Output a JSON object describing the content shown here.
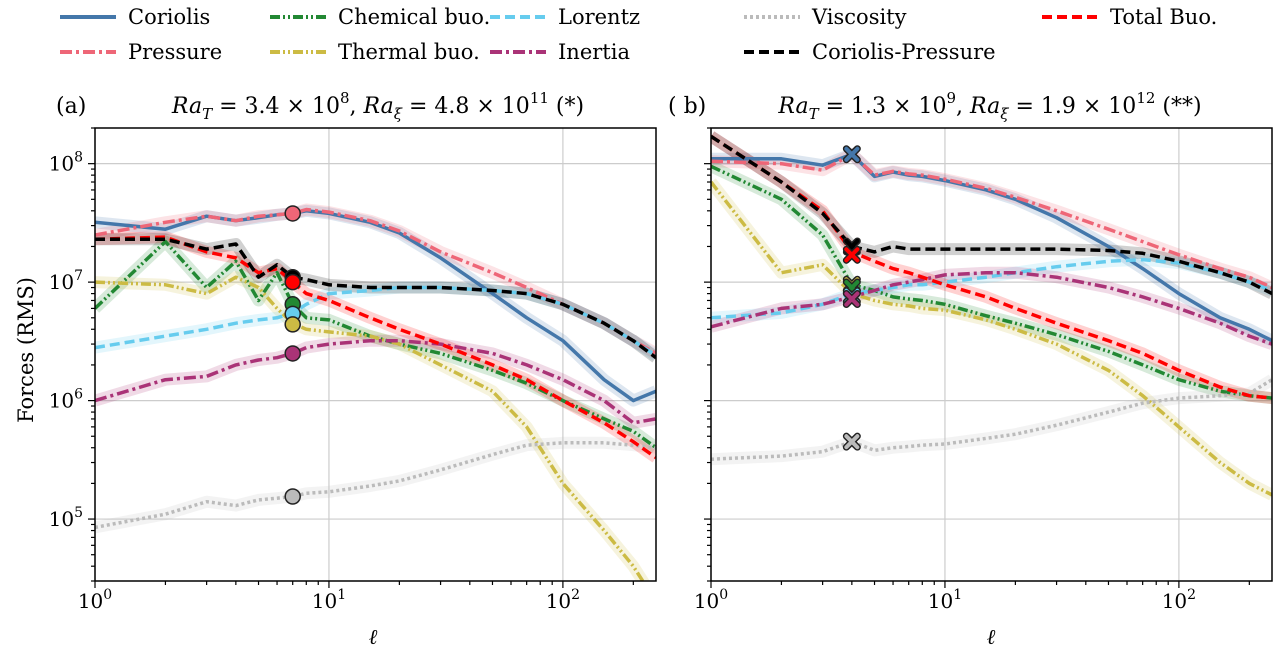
{
  "legend": [
    {
      "label": "Coriolis",
      "color": "#4477aa",
      "dash": "solid"
    },
    {
      "label": "Chemical buo.",
      "color": "#228833",
      "dash": "dashdotdot"
    },
    {
      "label": "Lorentz",
      "color": "#66ccee",
      "dash": "dash"
    },
    {
      "label": "Viscosity",
      "color": "#bbbbbb",
      "dash": "dot"
    },
    {
      "label": "Total Buo.",
      "color": "#ff0000",
      "dash": "dash"
    },
    {
      "label": "Pressure",
      "color": "#ee6677",
      "dash": "dashdot"
    },
    {
      "label": "Thermal buo.",
      "color": "#ccbb44",
      "dash": "dashdotdot"
    },
    {
      "label": "Inertia",
      "color": "#aa3377",
      "dash": "dashdot"
    },
    {
      "label": "Coriolis-Pressure",
      "color": "#000000",
      "dash": "dash"
    }
  ],
  "chart_data": [
    {
      "type": "line",
      "panel_label": "(a)",
      "title": "Ra_T = 3.4 × 10^8, Ra_ξ = 4.8 × 10^11 (*)",
      "title_parts": {
        "ra_t_mant": "3.4",
        "ra_t_exp": "8",
        "ra_xi_mant": "4.8",
        "ra_xi_exp": "11",
        "tag": "(*)"
      },
      "xlabel": "ℓ",
      "ylabel": "Forces (RMS)",
      "xscale": "log",
      "yscale": "log",
      "xlim": [
        1,
        250
      ],
      "ylim": [
        30000,
        200000000
      ],
      "xticks": [
        1,
        10,
        100
      ],
      "yticks": [
        100000,
        1000000,
        10000000,
        100000000
      ],
      "grid": true,
      "marker_shape": "circle",
      "marker_x": 7,
      "series": [
        {
          "name": "Coriolis",
          "x": [
            1,
            2,
            3,
            4,
            5,
            6,
            7,
            8,
            10,
            15,
            20,
            30,
            50,
            70,
            100,
            150,
            200,
            250
          ],
          "y": [
            32000000,
            28000000,
            36000000,
            33000000,
            35000000,
            37000000,
            38000000,
            40000000,
            38000000,
            32000000,
            26000000,
            16000000,
            8000000,
            5000000,
            3200000,
            1500000,
            1000000,
            1200000
          ]
        },
        {
          "name": "Pressure",
          "x": [
            1,
            2,
            3,
            4,
            5,
            6,
            7,
            8,
            10,
            15,
            20,
            30,
            50,
            70,
            100,
            150,
            200,
            250
          ],
          "y": [
            25000000,
            32000000,
            36000000,
            33000000,
            36000000,
            37000000,
            38000000,
            41000000,
            39000000,
            33000000,
            27000000,
            18000000,
            12000000,
            9000000,
            6500000,
            4500000,
            3200000,
            2500000
          ]
        },
        {
          "name": "Chemical buo.",
          "x": [
            1,
            2,
            3,
            4,
            5,
            6,
            7,
            8,
            10,
            15,
            20,
            30,
            50,
            70,
            100,
            150,
            200,
            250
          ],
          "y": [
            6000000,
            22000000,
            9000000,
            15000000,
            7000000,
            12000000,
            6500000,
            5000000,
            4800000,
            3500000,
            3000000,
            2500000,
            1800000,
            1400000,
            1000000,
            700000,
            550000,
            400000
          ]
        },
        {
          "name": "Thermal buo.",
          "x": [
            1,
            2,
            3,
            4,
            5,
            6,
            7,
            8,
            10,
            15,
            20,
            30,
            50,
            70,
            100,
            150,
            200,
            250
          ],
          "y": [
            10000000,
            9500000,
            8000000,
            11000000,
            9000000,
            6000000,
            4500000,
            4000000,
            3800000,
            3500000,
            3000000,
            2000000,
            1200000,
            600000,
            200000,
            80000,
            40000,
            20000
          ]
        },
        {
          "name": "Lorentz",
          "x": [
            1,
            2,
            3,
            4,
            5,
            6,
            7,
            8,
            10,
            15,
            20,
            30,
            50,
            70,
            100,
            150,
            200,
            250
          ],
          "y": [
            2800000,
            3500000,
            4000000,
            4500000,
            4800000,
            5000000,
            5500000,
            6500000,
            8000000,
            8500000,
            9000000,
            9000000,
            8500000,
            8000000,
            6500000,
            4500000,
            3200000,
            2400000
          ]
        },
        {
          "name": "Inertia",
          "x": [
            1,
            2,
            3,
            4,
            5,
            6,
            7,
            8,
            10,
            15,
            20,
            30,
            50,
            70,
            100,
            150,
            200,
            250
          ],
          "y": [
            1000000,
            1500000,
            1600000,
            2000000,
            2200000,
            2300000,
            2500000,
            2800000,
            3000000,
            3200000,
            3200000,
            3000000,
            2500000,
            2000000,
            1500000,
            1000000,
            650000,
            700000
          ]
        },
        {
          "name": "Viscosity",
          "x": [
            1,
            2,
            3,
            4,
            5,
            6,
            7,
            8,
            10,
            15,
            20,
            30,
            50,
            70,
            100,
            150,
            200,
            250
          ],
          "y": [
            85000,
            110000,
            140000,
            130000,
            145000,
            150000,
            155000,
            165000,
            170000,
            190000,
            210000,
            260000,
            350000,
            420000,
            440000,
            440000,
            420000,
            400000
          ]
        },
        {
          "name": "Total Buo.",
          "x": [
            1,
            2,
            3,
            4,
            5,
            6,
            7,
            8,
            10,
            15,
            20,
            30,
            50,
            70,
            100,
            150,
            200,
            250
          ],
          "y": [
            23000000,
            24000000,
            18000000,
            16000000,
            12000000,
            13000000,
            10000000,
            8000000,
            7000000,
            5000000,
            4000000,
            3000000,
            2000000,
            1500000,
            1000000,
            650000,
            450000,
            330000
          ]
        },
        {
          "name": "Coriolis-Pressure",
          "x": [
            1,
            2,
            3,
            4,
            5,
            6,
            7,
            8,
            10,
            15,
            20,
            30,
            50,
            70,
            100,
            150,
            200,
            250
          ],
          "y": [
            23000000,
            23000000,
            19000000,
            21000000,
            11000000,
            14000000,
            11000000,
            10500000,
            9500000,
            9000000,
            9000000,
            9000000,
            8500000,
            8000000,
            6500000,
            4500000,
            3200000,
            2300000
          ]
        }
      ],
      "markers": [
        {
          "name": "Pressure",
          "y": 38000000
        },
        {
          "name": "Coriolis-Pressure",
          "y": 11000000
        },
        {
          "name": "Total Buo.",
          "y": 10000000
        },
        {
          "name": "Chemical buo.",
          "y": 6500000
        },
        {
          "name": "Lorentz",
          "y": 5400000
        },
        {
          "name": "Thermal buo.",
          "y": 4400000
        },
        {
          "name": "Inertia",
          "y": 2500000
        },
        {
          "name": "Viscosity",
          "y": 155000
        }
      ]
    },
    {
      "type": "line",
      "panel_label": "( b)",
      "title": "Ra_T = 1.3 × 10^9, Ra_ξ = 1.9 × 10^12 (**)",
      "title_parts": {
        "ra_t_mant": "1.3",
        "ra_t_exp": "9",
        "ra_xi_mant": "1.9",
        "ra_xi_exp": "12",
        "tag": "(**)"
      },
      "xlabel": "ℓ",
      "ylabel": "",
      "xscale": "log",
      "yscale": "log",
      "xlim": [
        1,
        250
      ],
      "ylim": [
        30000,
        200000000
      ],
      "xticks": [
        1,
        10,
        100
      ],
      "yticks": [
        100000,
        1000000,
        10000000,
        100000000
      ],
      "grid": true,
      "marker_shape": "x",
      "marker_x": 4,
      "series": [
        {
          "name": "Coriolis",
          "x": [
            1,
            2,
            3,
            4,
            5,
            6,
            7,
            8,
            10,
            15,
            20,
            30,
            50,
            70,
            100,
            150,
            200,
            250
          ],
          "y": [
            110000000,
            110000000,
            97000000,
            120000000,
            78000000,
            85000000,
            80000000,
            78000000,
            72000000,
            60000000,
            50000000,
            35000000,
            20000000,
            13000000,
            8000000,
            5000000,
            4000000,
            3200000
          ]
        },
        {
          "name": "Pressure",
          "x": [
            1,
            2,
            3,
            4,
            5,
            6,
            7,
            8,
            10,
            15,
            20,
            30,
            50,
            70,
            100,
            150,
            200,
            250
          ],
          "y": [
            105000000,
            100000000,
            88000000,
            120000000,
            80000000,
            86000000,
            82000000,
            80000000,
            74000000,
            62000000,
            52000000,
            40000000,
            28000000,
            22000000,
            17000000,
            13000000,
            11000000,
            9000000
          ]
        },
        {
          "name": "Chemical buo.",
          "x": [
            1,
            2,
            3,
            4,
            5,
            6,
            7,
            8,
            10,
            15,
            20,
            30,
            50,
            70,
            100,
            150,
            200,
            250
          ],
          "y": [
            95000000,
            50000000,
            25000000,
            9500000,
            8500000,
            7500000,
            7200000,
            7000000,
            6500000,
            5200000,
            4500000,
            3600000,
            2600000,
            2000000,
            1500000,
            1200000,
            1100000,
            1050000
          ]
        },
        {
          "name": "Thermal buo.",
          "x": [
            1,
            2,
            3,
            4,
            5,
            6,
            7,
            8,
            10,
            15,
            20,
            30,
            50,
            70,
            100,
            150,
            200,
            250
          ],
          "y": [
            70000000,
            12000000,
            14000000,
            8000000,
            7000000,
            6500000,
            6300000,
            6000000,
            5800000,
            4800000,
            4000000,
            3000000,
            1800000,
            1100000,
            600000,
            300000,
            200000,
            160000
          ]
        },
        {
          "name": "Lorentz",
          "x": [
            1,
            2,
            3,
            4,
            5,
            6,
            7,
            8,
            10,
            15,
            20,
            30,
            50,
            70,
            100,
            150,
            200,
            250
          ],
          "y": [
            5000000,
            5500000,
            6500000,
            8000000,
            8500000,
            9000000,
            9500000,
            9500000,
            10000000,
            11000000,
            12000000,
            13500000,
            15000000,
            15500000,
            14500000,
            12000000,
            10000000,
            8500000
          ]
        },
        {
          "name": "Inertia",
          "x": [
            1,
            2,
            3,
            4,
            5,
            6,
            7,
            8,
            10,
            15,
            20,
            30,
            50,
            70,
            100,
            150,
            200,
            250
          ],
          "y": [
            4200000,
            6000000,
            6500000,
            7500000,
            8500000,
            9500000,
            10000000,
            10500000,
            11500000,
            12000000,
            12000000,
            11000000,
            9000000,
            7500000,
            6000000,
            4500000,
            3500000,
            3000000
          ]
        },
        {
          "name": "Viscosity",
          "x": [
            1,
            2,
            3,
            4,
            5,
            6,
            7,
            8,
            10,
            15,
            20,
            30,
            50,
            70,
            100,
            150,
            200,
            250
          ],
          "y": [
            320000,
            340000,
            370000,
            450000,
            380000,
            400000,
            410000,
            420000,
            430000,
            480000,
            520000,
            620000,
            800000,
            950000,
            1050000,
            1100000,
            1150000,
            1500000
          ]
        },
        {
          "name": "Total Buo.",
          "x": [
            1,
            2,
            3,
            4,
            5,
            6,
            7,
            8,
            10,
            15,
            20,
            30,
            50,
            70,
            100,
            150,
            200,
            250
          ],
          "y": [
            170000000,
            70000000,
            40000000,
            18000000,
            15000000,
            13000000,
            12000000,
            11000000,
            9500000,
            7500000,
            6000000,
            4500000,
            3200000,
            2500000,
            1800000,
            1300000,
            1100000,
            1050000
          ]
        },
        {
          "name": "Coriolis-Pressure",
          "x": [
            1,
            2,
            3,
            4,
            5,
            6,
            7,
            8,
            10,
            15,
            20,
            30,
            50,
            70,
            100,
            150,
            200,
            250
          ],
          "y": [
            170000000,
            70000000,
            38000000,
            20000000,
            18000000,
            20000000,
            19000000,
            19000000,
            19000000,
            19000000,
            19000000,
            19000000,
            18500000,
            17500000,
            15000000,
            12000000,
            10000000,
            8000000
          ]
        }
      ],
      "markers": [
        {
          "name": "Coriolis",
          "y": 120000000
        },
        {
          "name": "Coriolis-Pressure",
          "y": 20000000
        },
        {
          "name": "Total Buo.",
          "y": 17000000
        },
        {
          "name": "Thermal buo.",
          "y": 9500000
        },
        {
          "name": "Chemical buo.",
          "y": 9000000
        },
        {
          "name": "Lorentz",
          "y": 7600000
        },
        {
          "name": "Inertia",
          "y": 7200000
        },
        {
          "name": "Viscosity",
          "y": 450000
        }
      ]
    }
  ]
}
